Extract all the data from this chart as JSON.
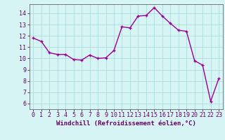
{
  "x": [
    0,
    1,
    2,
    3,
    4,
    5,
    6,
    7,
    8,
    9,
    10,
    11,
    12,
    13,
    14,
    15,
    16,
    17,
    18,
    19,
    20,
    21,
    22,
    23
  ],
  "y": [
    11.8,
    11.5,
    10.5,
    10.35,
    10.35,
    9.9,
    9.85,
    10.3,
    10.0,
    10.05,
    10.7,
    12.8,
    12.7,
    13.75,
    13.8,
    14.5,
    13.75,
    13.1,
    12.5,
    12.4,
    9.8,
    9.4,
    6.2,
    8.2
  ],
  "line_color": "#990099",
  "marker": "+",
  "marker_size": 3,
  "bg_color": "#d8f5f5",
  "grid_color": "#aadddd",
  "tick_color": "#660066",
  "axis_color": "#666666",
  "xlabel": "Windchill (Refroidissement éolien,°C)",
  "ylabel": "",
  "xlim": [
    -0.5,
    23.5
  ],
  "ylim": [
    5.5,
    14.8
  ],
  "yticks": [
    6,
    7,
    8,
    9,
    10,
    11,
    12,
    13,
    14
  ],
  "xticks": [
    0,
    1,
    2,
    3,
    4,
    5,
    6,
    7,
    8,
    9,
    10,
    11,
    12,
    13,
    14,
    15,
    16,
    17,
    18,
    19,
    20,
    21,
    22,
    23
  ],
  "font_family": "monospace",
  "xlabel_fontsize": 6.5,
  "tick_fontsize": 6,
  "linewidth": 1.0
}
